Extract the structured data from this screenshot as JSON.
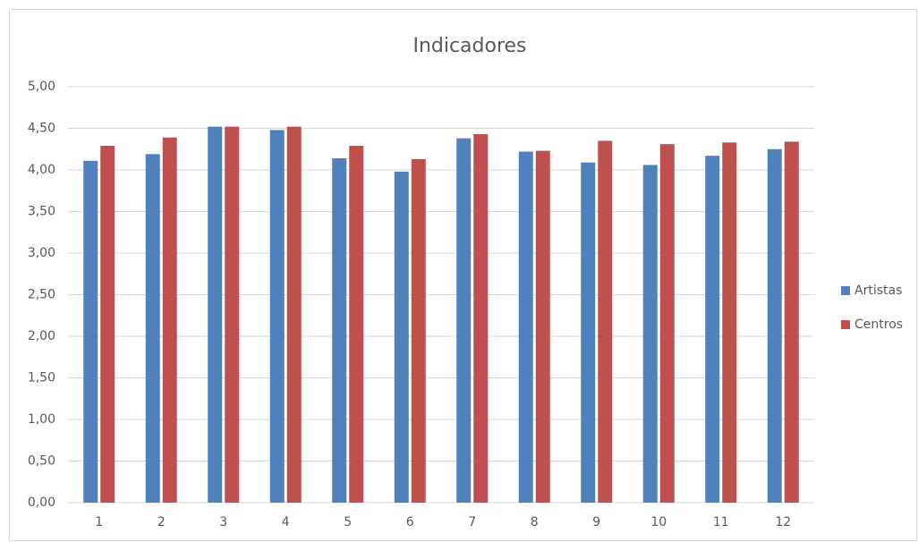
{
  "chart_data": {
    "type": "bar",
    "title": "Indicadores",
    "categories": [
      "1",
      "2",
      "3",
      "4",
      "5",
      "6",
      "7",
      "8",
      "9",
      "10",
      "11",
      "12"
    ],
    "series": [
      {
        "name": "Artistas",
        "color": "#4f81bd",
        "values": [
          4.11,
          4.19,
          4.52,
          4.48,
          4.14,
          3.98,
          4.38,
          4.22,
          4.09,
          4.06,
          4.17,
          4.25
        ]
      },
      {
        "name": "Centros",
        "color": "#c0504d",
        "values": [
          4.29,
          4.39,
          4.52,
          4.52,
          4.29,
          4.13,
          4.43,
          4.23,
          4.35,
          4.31,
          4.33,
          4.34
        ]
      }
    ],
    "ylim": [
      0,
      5
    ],
    "yticks": [
      {
        "value": 0,
        "label": "0,00"
      },
      {
        "value": 0.5,
        "label": "0,50"
      },
      {
        "value": 1,
        "label": "1,00"
      },
      {
        "value": 1.5,
        "label": "1,50"
      },
      {
        "value": 2,
        "label": "2,00"
      },
      {
        "value": 2.5,
        "label": "2,50"
      },
      {
        "value": 3,
        "label": "3,00"
      },
      {
        "value": 3.5,
        "label": "3,50"
      },
      {
        "value": 4,
        "label": "4,00"
      },
      {
        "value": 4.5,
        "label": "4,50"
      },
      {
        "value": 5,
        "label": "5,00"
      }
    ],
    "grid": true,
    "legend": "right"
  }
}
